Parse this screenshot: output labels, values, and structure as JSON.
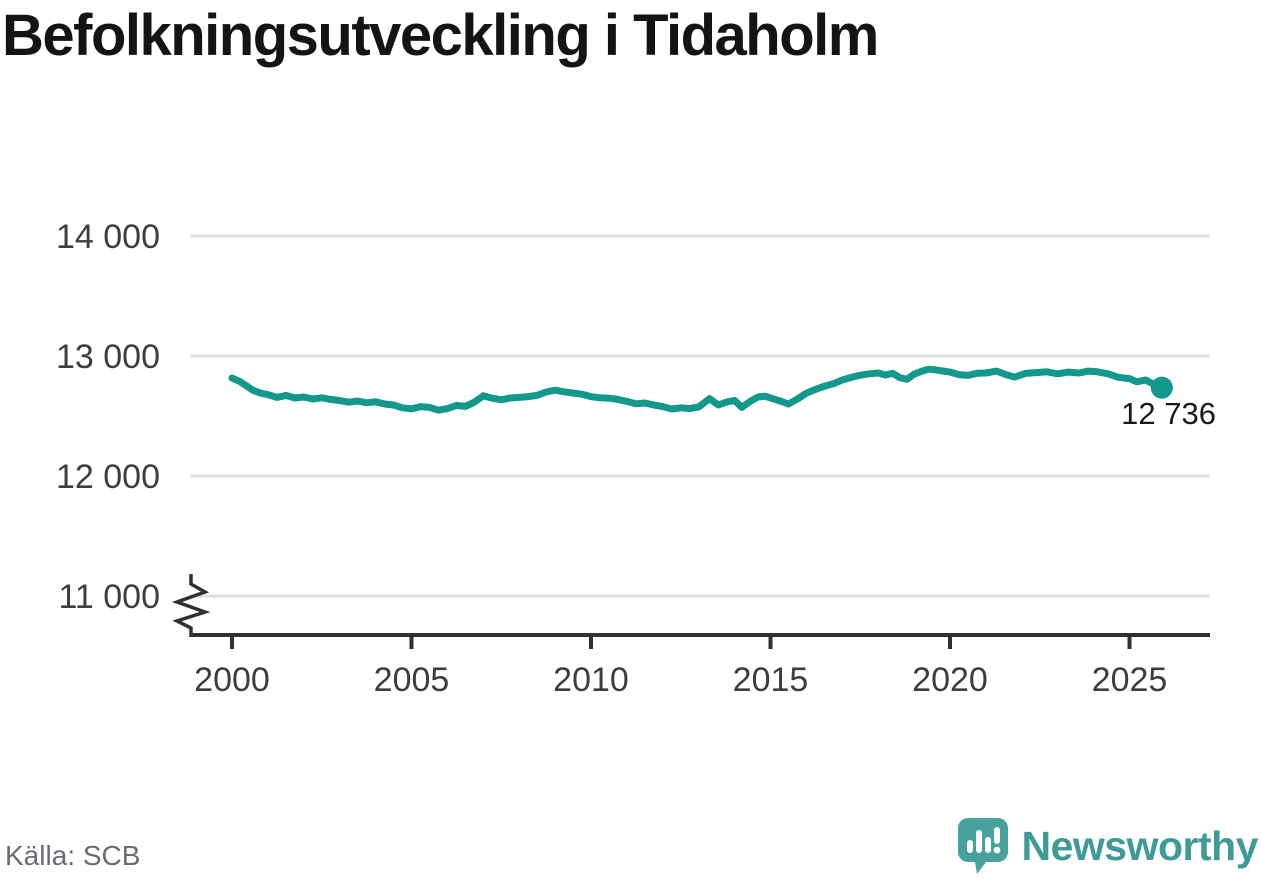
{
  "title": "Befolkningsutveckling i Tidaholm",
  "source": "Källa: SCB",
  "brand": {
    "name": "Newsworthy"
  },
  "colors": {
    "line": "#13998c",
    "grid": "#dedede",
    "axis": "#303030",
    "tick_label": "#3d3d3d",
    "title_text": "#141414",
    "source_text": "#6b6b74",
    "brand_teal": "#3f9b96",
    "brand_bubble": "#47a19c",
    "background": "#ffffff",
    "end_label_text": "#1a1a1a"
  },
  "chart_data": {
    "type": "line",
    "title": "Befolkningsutveckling i Tidaholm",
    "xlabel": "",
    "ylabel": "",
    "grid": "horizontal",
    "legend": "none",
    "axis_break": true,
    "end_label": "12 736",
    "end_value": 12736,
    "x_range": [
      2000,
      2025.9
    ],
    "ylim": [
      11000,
      14000
    ],
    "y_ticks": [
      {
        "value": 14000,
        "label": "14 000"
      },
      {
        "value": 13000,
        "label": "13 000"
      },
      {
        "value": 12000,
        "label": "12 000"
      },
      {
        "value": 11000,
        "label": "11 000"
      }
    ],
    "x_ticks": [
      {
        "value": 2000,
        "label": "2000"
      },
      {
        "value": 2005,
        "label": "2005"
      },
      {
        "value": 2010,
        "label": "2010"
      },
      {
        "value": 2015,
        "label": "2015"
      },
      {
        "value": 2020,
        "label": "2020"
      },
      {
        "value": 2025,
        "label": "2025"
      }
    ],
    "series": [
      {
        "x": [
          2000.0,
          2000.2,
          2000.4,
          2000.6,
          2000.8,
          2001.0,
          2001.25,
          2001.5,
          2001.75,
          2002.0,
          2002.25,
          2002.5,
          2002.75,
          2003.0,
          2003.25,
          2003.5,
          2003.75,
          2004.0,
          2004.25,
          2004.5,
          2004.75,
          2005.0,
          2005.25,
          2005.5,
          2005.75,
          2006.0,
          2006.25,
          2006.5,
          2006.75,
          2007.0,
          2007.25,
          2007.5,
          2007.75,
          2008.0,
          2008.25,
          2008.5,
          2008.75,
          2009.0,
          2009.25,
          2009.5,
          2009.75,
          2010.0,
          2010.25,
          2010.5,
          2010.75,
          2011.0,
          2011.25,
          2011.5,
          2011.75,
          2012.0,
          2012.25,
          2012.5,
          2012.75,
          2013.0,
          2013.3,
          2013.55,
          2013.8,
          2014.0,
          2014.2,
          2014.45,
          2014.65,
          2014.85,
          2015.05,
          2015.3,
          2015.5,
          2015.75,
          2016.0,
          2016.25,
          2016.5,
          2016.75,
          2017.0,
          2017.25,
          2017.5,
          2017.75,
          2018.0,
          2018.2,
          2018.4,
          2018.6,
          2018.8,
          2019.0,
          2019.2,
          2019.4,
          2019.6,
          2019.8,
          2020.0,
          2020.25,
          2020.5,
          2020.75,
          2021.0,
          2021.3,
          2021.55,
          2021.8,
          2022.1,
          2022.4,
          2022.7,
          2023.0,
          2023.3,
          2023.6,
          2023.85,
          2024.1,
          2024.4,
          2024.7,
          2025.0,
          2025.2,
          2025.45,
          2025.65,
          2025.9
        ],
        "values": [
          12817,
          12790,
          12752,
          12712,
          12690,
          12678,
          12655,
          12672,
          12650,
          12658,
          12642,
          12652,
          12638,
          12628,
          12615,
          12625,
          12610,
          12618,
          12600,
          12592,
          12568,
          12560,
          12578,
          12572,
          12548,
          12562,
          12588,
          12580,
          12615,
          12668,
          12648,
          12635,
          12650,
          12655,
          12662,
          12672,
          12700,
          12715,
          12702,
          12692,
          12682,
          12662,
          12652,
          12648,
          12638,
          12622,
          12602,
          12608,
          12592,
          12578,
          12558,
          12568,
          12562,
          12575,
          12645,
          12592,
          12618,
          12630,
          12572,
          12625,
          12658,
          12665,
          12645,
          12622,
          12600,
          12642,
          12690,
          12722,
          12748,
          12768,
          12800,
          12822,
          12840,
          12852,
          12858,
          12842,
          12856,
          12820,
          12806,
          12848,
          12872,
          12890,
          12884,
          12875,
          12866,
          12845,
          12838,
          12856,
          12858,
          12874,
          12846,
          12824,
          12855,
          12862,
          12868,
          12852,
          12866,
          12858,
          12874,
          12868,
          12852,
          12822,
          12812,
          12785,
          12800,
          12768,
          12736
        ]
      }
    ]
  }
}
